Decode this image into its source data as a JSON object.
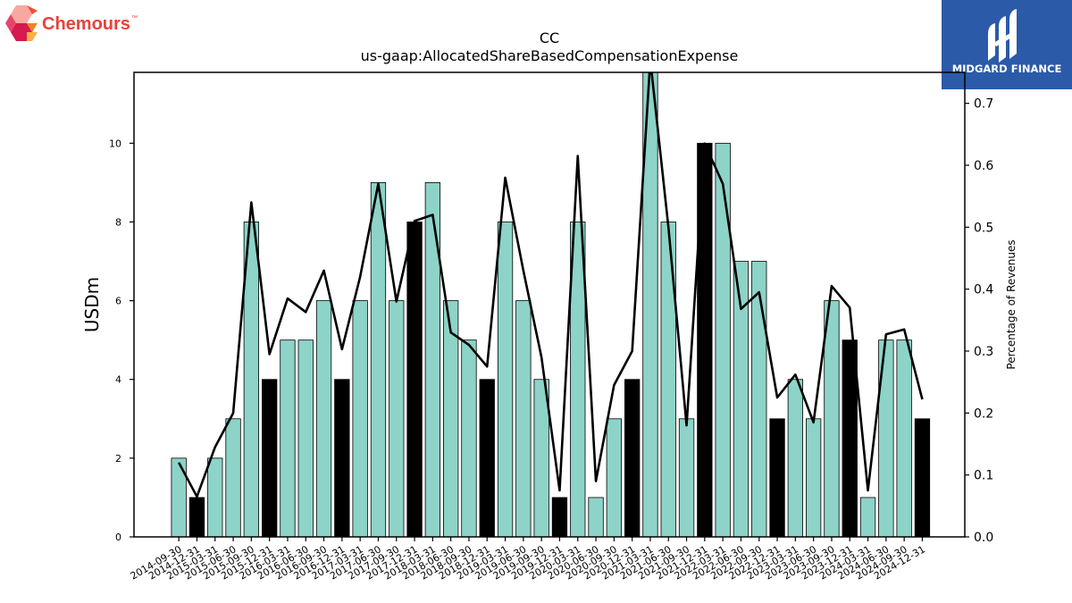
{
  "branding": {
    "company_name": "Chemours",
    "company_tm": "™",
    "publisher_name": "MIDGARD FINANCE"
  },
  "chart_data": {
    "type": "bar",
    "title": "CC",
    "subtitle": "us-gaap:AllocatedShareBasedCompensationExpense",
    "ylabel": "USDm",
    "y2label": "Percentage of Revenues",
    "ylim": [
      0,
      11.8
    ],
    "y2lim": [
      0,
      0.75
    ],
    "yticks": [
      0,
      2,
      4,
      6,
      8,
      10
    ],
    "y2ticks": [
      0.0,
      0.1,
      0.2,
      0.3,
      0.4,
      0.5,
      0.6,
      0.7
    ],
    "categories": [
      "2014-09-30",
      "2014-12-31",
      "2015-03-31",
      "2015-06-30",
      "2015-09-30",
      "2015-12-31",
      "2016-03-31",
      "2016-06-30",
      "2016-09-30",
      "2016-12-31",
      "2017-03-31",
      "2017-06-30",
      "2017-09-30",
      "2017-12-31",
      "2018-03-31",
      "2018-06-30",
      "2018-09-30",
      "2018-12-31",
      "2019-03-31",
      "2019-06-30",
      "2019-09-30",
      "2019-12-31",
      "2020-03-31",
      "2020-06-30",
      "2020-09-30",
      "2020-12-31",
      "2021-03-31",
      "2021-06-30",
      "2021-09-30",
      "2021-12-31",
      "2022-03-31",
      "2022-06-30",
      "2022-09-30",
      "2022-12-31",
      "2023-03-31",
      "2023-06-30",
      "2023-09-30",
      "2023-12-31",
      "2024-03-31",
      "2024-06-30",
      "2024-09-30",
      "2024-12-31"
    ],
    "series": [
      {
        "type": "bar",
        "values": [
          2,
          1,
          2,
          3,
          8,
          4,
          5,
          5,
          6,
          4,
          6,
          9,
          6,
          8,
          9,
          6,
          5,
          4,
          8,
          6,
          4,
          1,
          8,
          1,
          3,
          4,
          12,
          8,
          3,
          10,
          10,
          7,
          7,
          3,
          4,
          3,
          6,
          5,
          1,
          5,
          5,
          3
        ]
      },
      {
        "type": "line",
        "values": [
          0.12,
          0.065,
          0.145,
          0.2,
          0.54,
          0.295,
          0.385,
          0.363,
          0.43,
          0.303,
          0.42,
          0.57,
          0.38,
          0.51,
          0.52,
          0.33,
          0.31,
          0.275,
          0.58,
          0.43,
          0.29,
          0.075,
          0.615,
          0.09,
          0.245,
          0.3,
          0.77,
          0.5,
          0.18,
          0.635,
          0.57,
          0.368,
          0.395,
          0.225,
          0.262,
          0.185,
          0.405,
          0.37,
          0.075,
          0.327,
          0.335,
          0.222
        ]
      }
    ],
    "dark_bar_categories": [
      "2014-12-31",
      "2015-12-31",
      "2016-12-31",
      "2017-12-31",
      "2018-12-31",
      "2019-12-31",
      "2020-12-31",
      "2021-12-31",
      "2022-12-31",
      "2023-12-31",
      "2024-12-31"
    ],
    "colors": {
      "bar": "#8dd3c7",
      "bar_year_end": "#000000",
      "line": "#000000"
    },
    "grid": false,
    "legend": "none"
  }
}
